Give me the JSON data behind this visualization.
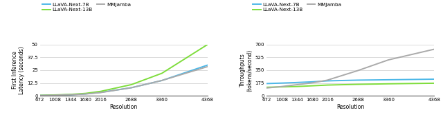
{
  "x": [
    672,
    1008,
    1344,
    1680,
    2016,
    2688,
    3360,
    4368
  ],
  "latency": {
    "llava_7b": [
      0.5,
      0.8,
      1.2,
      2.0,
      3.5,
      8.0,
      15.0,
      30.0
    ],
    "llava_13b": [
      0.6,
      1.0,
      1.5,
      2.5,
      4.5,
      11.0,
      22.0,
      50.0
    ],
    "mmjamba": [
      0.5,
      0.75,
      1.15,
      1.9,
      3.3,
      8.0,
      15.0,
      28.5
    ]
  },
  "throughput": {
    "llava_7b": [
      168,
      175,
      183,
      192,
      205,
      215,
      220,
      228
    ],
    "llava_13b": [
      118,
      123,
      128,
      138,
      148,
      158,
      165,
      173
    ],
    "mmjamba": [
      108,
      128,
      153,
      178,
      215,
      345,
      490,
      635
    ]
  },
  "colors": {
    "llava_7b": "#4db8e8",
    "llava_13b": "#7edd3c",
    "mmjamba": "#aaaaaa"
  },
  "xticks": [
    672,
    1008,
    1344,
    1680,
    2016,
    2688,
    3360,
    4368
  ],
  "yticks_latency": [
    0,
    12.5,
    25,
    37.5,
    50
  ],
  "yticks_throughput": [
    0,
    175,
    350,
    525,
    700
  ],
  "ylabel_left": "First Inference\nLatency (seconds)",
  "ylabel_right": "Throughputs\n(tokens/second)",
  "xlabel": "Resolution",
  "legend_labels": [
    "LLaVA-Next-7B",
    "LLaVA-Next-13B",
    "MMJamba"
  ]
}
